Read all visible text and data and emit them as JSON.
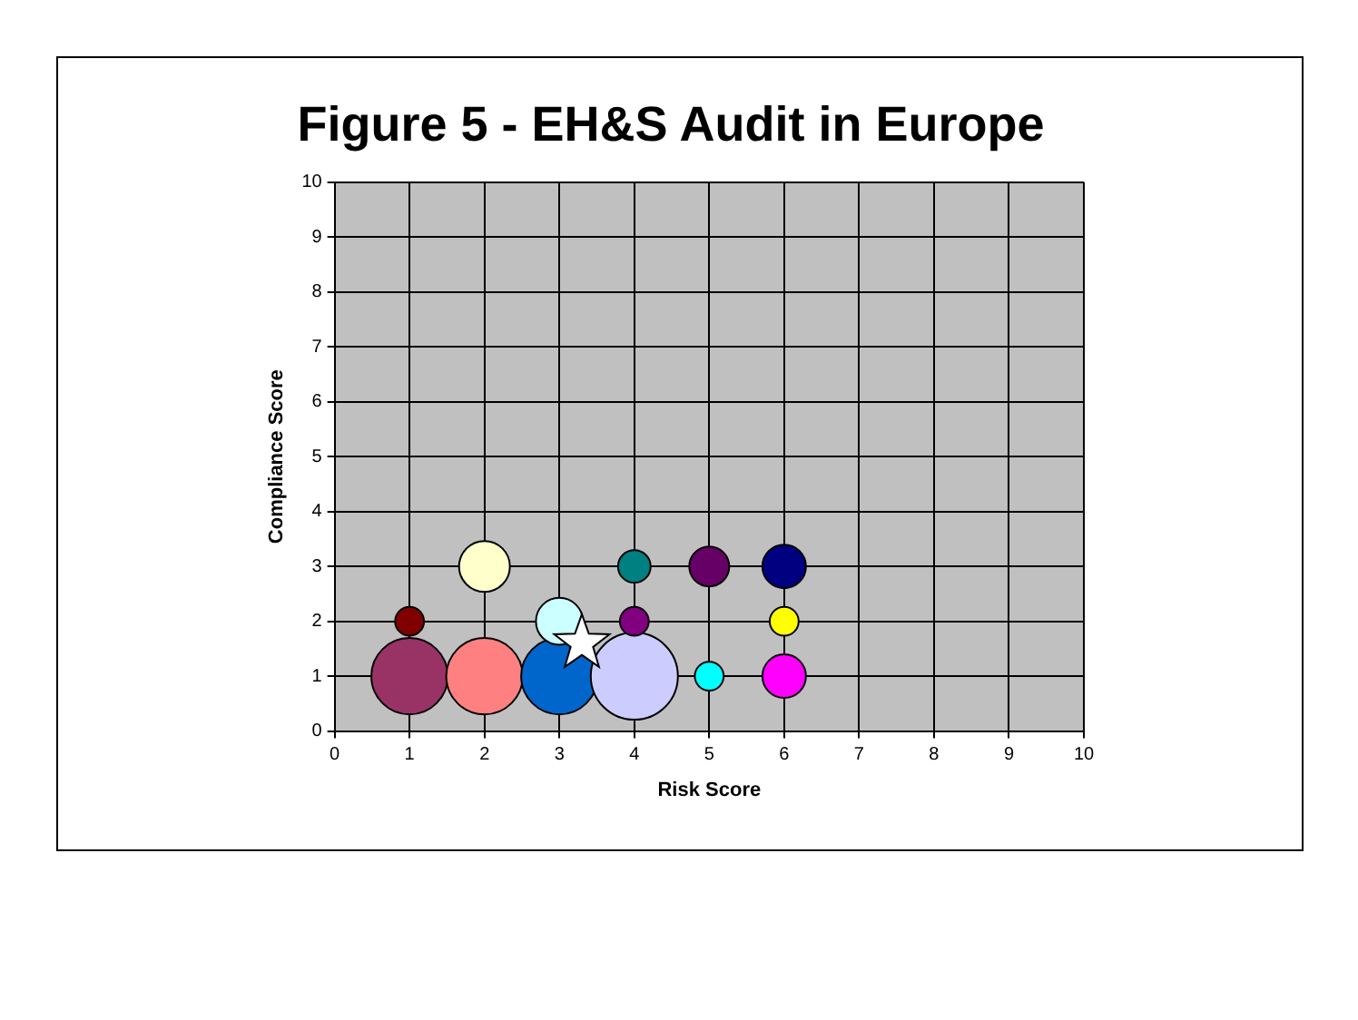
{
  "chart_data": {
    "type": "bubble",
    "title": "Figure 5 - EH&S Audit in Europe",
    "xlabel": "Risk Score",
    "ylabel": "Compliance Score",
    "xlim": [
      0,
      10
    ],
    "xticks": [
      0,
      1,
      2,
      3,
      4,
      5,
      6,
      7,
      8,
      9,
      10
    ],
    "ylim": [
      0,
      10
    ],
    "yticks": [
      0,
      1,
      2,
      3,
      4,
      5,
      6,
      7,
      8,
      9,
      10
    ],
    "grid": true,
    "legend": false,
    "series": [
      {
        "type": "bubble",
        "x": [
          1,
          2,
          3,
          4,
          1,
          2,
          3,
          4,
          4,
          5,
          6,
          6,
          5,
          6
        ],
        "values": [
          1,
          1,
          1,
          1,
          2,
          3,
          2,
          3,
          2,
          3,
          3,
          2,
          1,
          1
        ],
        "sizes": [
          0.77,
          0.77,
          0.77,
          1,
          0.11,
          0.34,
          0.29,
          0.14,
          0.11,
          0.21,
          0.25,
          0.11,
          0.11,
          0.25
        ],
        "colors": [
          "#993366",
          "#ff8080",
          "#0066cc",
          "#ccccff",
          "#800000",
          "#ffffcc",
          "#ccffff",
          "#008080",
          "#800080",
          "#660066",
          "#000080",
          "#ffff00",
          "#00ffff",
          "#ff00ff"
        ]
      },
      {
        "type": "scatter",
        "x": [
          3.3
        ],
        "values": [
          1.6
        ],
        "color": "#ffffff",
        "marker": "star"
      }
    ]
  }
}
